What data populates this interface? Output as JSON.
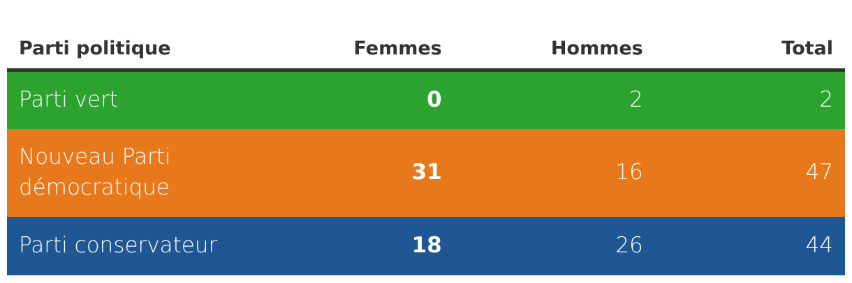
{
  "table": {
    "header": [
      "Parti politique",
      "Femmes",
      "Hommes",
      "Total"
    ],
    "rows": [
      [
        "Parti vert",
        0,
        2,
        2
      ],
      [
        "Nouveau Parti démocratique",
        31,
        16,
        47
      ],
      [
        "Parti conservateur",
        18,
        26,
        44
      ]
    ],
    "row_colors": [
      "#2ca32f",
      "#e8781c",
      "#1f5694"
    ]
  }
}
